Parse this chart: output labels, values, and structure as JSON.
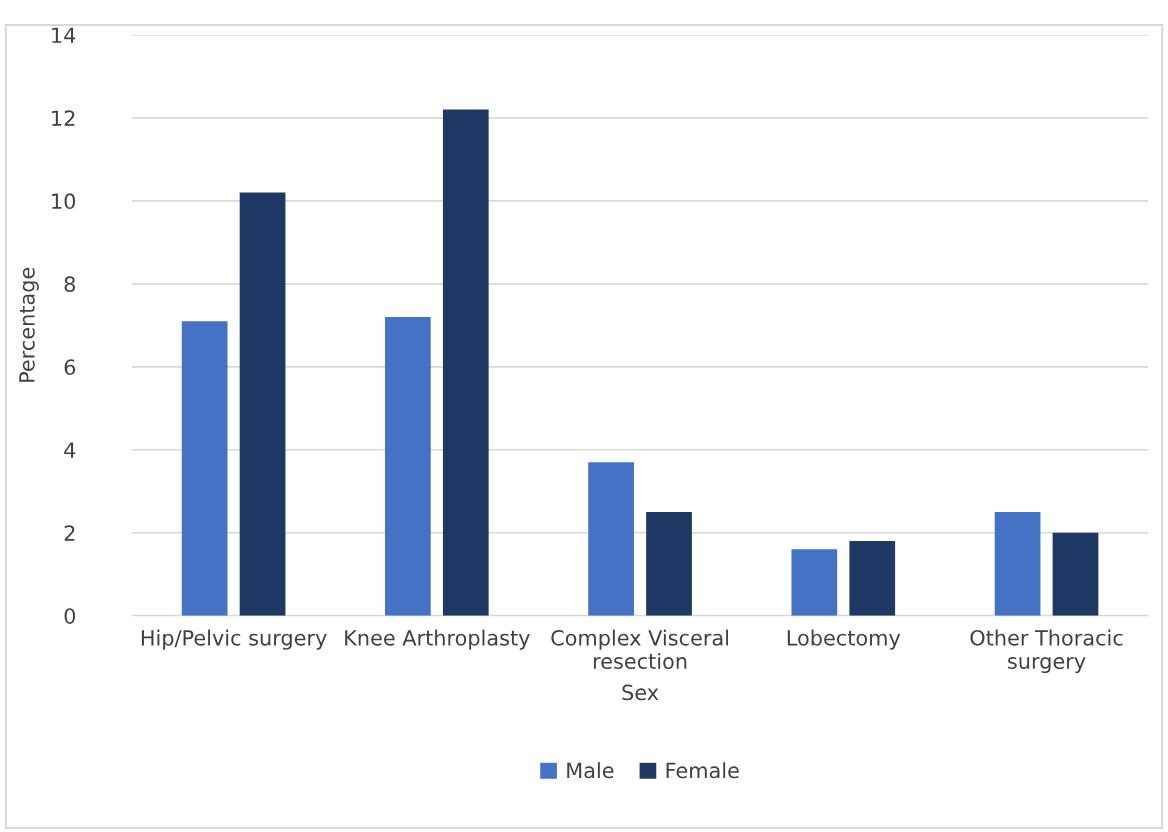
{
  "chart_data": {
    "type": "bar",
    "xlabel": "Sex",
    "ylabel": "Percentage",
    "categories": [
      "Hip/Pelvic surgery",
      "Knee Arthroplasty",
      "Complex Visceral\nresection",
      "Lobectomy",
      "Other Thoracic\nsurgery"
    ],
    "series": [
      {
        "name": "Male",
        "color": "#4472c4",
        "values": [
          7.1,
          7.2,
          3.7,
          1.6,
          2.5
        ]
      },
      {
        "name": "Female",
        "color": "#1f3864",
        "values": [
          10.2,
          12.2,
          2.5,
          1.8,
          2.0
        ]
      }
    ],
    "ylim": [
      0,
      14
    ],
    "yticks": [
      0,
      2,
      4,
      6,
      8,
      10,
      12,
      14
    ],
    "grid": "y",
    "legend": "bottom"
  }
}
